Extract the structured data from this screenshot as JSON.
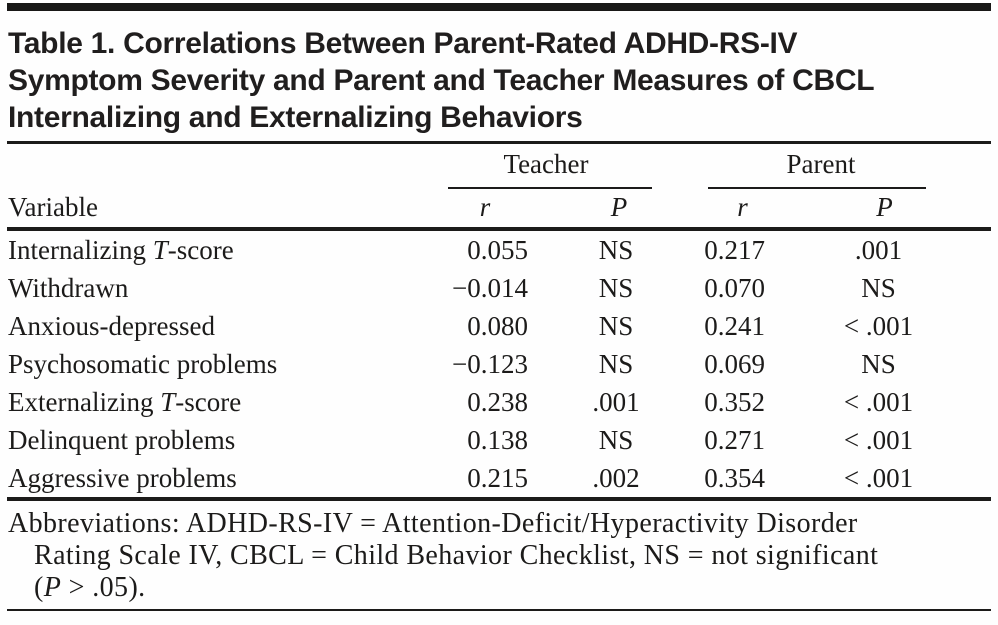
{
  "page": {
    "bg": "#fefefe",
    "ink": "#1c1b1a"
  },
  "title": {
    "lines": [
      "Table 1. Correlations Between Parent-Rated ADHD-RS-IV",
      "Symptom Severity and Parent and Teacher Measures of CBCL",
      "Internalizing and Externalizing Behaviors"
    ]
  },
  "table": {
    "col_groups": [
      {
        "label": "Teacher"
      },
      {
        "label": "Parent"
      }
    ],
    "sub_headers": {
      "variable": "Variable",
      "r": "r",
      "p": "P"
    },
    "rows": [
      {
        "label_pre": "Internalizing ",
        "label_it": "T",
        "label_post": "-score",
        "t_r": "0.055",
        "t_p": "NS",
        "p_r": "0.217",
        "p_p": ".001"
      },
      {
        "label_pre": "Withdrawn",
        "label_it": "",
        "label_post": "",
        "t_r": "−0.014",
        "t_p": "NS",
        "p_r": "0.070",
        "p_p": "NS"
      },
      {
        "label_pre": "Anxious-depressed",
        "label_it": "",
        "label_post": "",
        "t_r": "0.080",
        "t_p": "NS",
        "p_r": "0.241",
        "p_p": "< .001"
      },
      {
        "label_pre": "Psychosomatic problems",
        "label_it": "",
        "label_post": "",
        "t_r": "−0.123",
        "t_p": "NS",
        "p_r": "0.069",
        "p_p": "NS"
      },
      {
        "label_pre": "Externalizing ",
        "label_it": "T",
        "label_post": "-score",
        "t_r": "0.238",
        "t_p": ".001",
        "p_r": "0.352",
        "p_p": "< .001"
      },
      {
        "label_pre": "Delinquent problems",
        "label_it": "",
        "label_post": "",
        "t_r": "0.138",
        "t_p": "NS",
        "p_r": "0.271",
        "p_p": "< .001"
      },
      {
        "label_pre": "Aggressive problems",
        "label_it": "",
        "label_post": "",
        "t_r": "0.215",
        "t_p": ".002",
        "p_r": "0.354",
        "p_p": "< .001"
      }
    ]
  },
  "footnote": {
    "lines": [
      {
        "indent": false,
        "segments": [
          {
            "t": "Abbreviations: ADHD-RS-IV = Attention-Deficit/Hyperactivity Disorder",
            "i": false
          }
        ]
      },
      {
        "indent": true,
        "segments": [
          {
            "t": "Rating Scale IV, CBCL = Child Behavior Checklist, NS = not significant",
            "i": false
          }
        ]
      },
      {
        "indent": true,
        "segments": [
          {
            "t": "(",
            "i": false
          },
          {
            "t": "P",
            "i": true
          },
          {
            "t": " > .05).",
            "i": false
          }
        ]
      }
    ]
  }
}
